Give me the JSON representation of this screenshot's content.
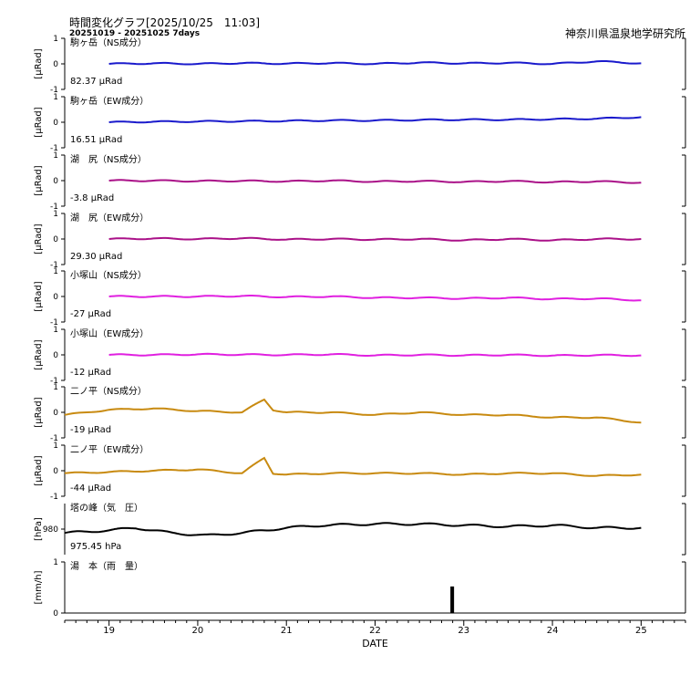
{
  "header": {
    "title": "時間変化グラフ[2025/10/25　11:03]",
    "range": "20251019 - 20251025 7days",
    "institute": "神奈川県温泉地学研究所"
  },
  "colors": {
    "blue": "#1a1acc",
    "purple": "#aa1188",
    "magenta": "#e020e0",
    "gold": "#c88a10",
    "black": "#000000"
  },
  "chart_data": {
    "type": "line",
    "xlabel": "DATE",
    "x_ticks": [
      "19",
      "20",
      "21",
      "22",
      "23",
      "24",
      "25"
    ],
    "xlim": [
      18.5,
      25.5
    ],
    "panels": [
      {
        "station": "駒ヶ岳（NS成分）",
        "ylabel": "[μRad]",
        "yticks": [
          "1",
          "0",
          "-1"
        ],
        "ylim": [
          -1,
          1
        ],
        "baseline": "82.37 μRad",
        "color": "blue",
        "series": [
          [
            19,
            0
          ],
          [
            19.5,
            0.02
          ],
          [
            20,
            0
          ],
          [
            20.5,
            0.03
          ],
          [
            21,
            0.01
          ],
          [
            21.5,
            0.03
          ],
          [
            22,
            0
          ],
          [
            22.5,
            0.05
          ],
          [
            23,
            0.02
          ],
          [
            23.5,
            0.04
          ],
          [
            24,
            0
          ],
          [
            24.5,
            0.1
          ],
          [
            25,
            0.02
          ]
        ]
      },
      {
        "station": "駒ヶ岳（EW成分）",
        "ylabel": "[μRad]",
        "yticks": [
          "1",
          "0",
          "-1"
        ],
        "ylim": [
          -1,
          1
        ],
        "baseline": "16.51 μRad",
        "color": "blue",
        "series": [
          [
            19,
            0
          ],
          [
            19.5,
            0.02
          ],
          [
            20,
            0.03
          ],
          [
            20.5,
            0.04
          ],
          [
            21,
            0.05
          ],
          [
            21.5,
            0.07
          ],
          [
            22,
            0.07
          ],
          [
            22.5,
            0.09
          ],
          [
            23,
            0.1
          ],
          [
            23.5,
            0.1
          ],
          [
            24,
            0.12
          ],
          [
            24.5,
            0.14
          ],
          [
            25,
            0.2
          ]
        ]
      },
      {
        "station": "湖　尻（NS成分）",
        "ylabel": "[μRad]",
        "yticks": [
          "1",
          "0",
          "-1"
        ],
        "ylim": [
          -1,
          1
        ],
        "baseline": "-3.8 μRad",
        "color": "purple",
        "series": [
          [
            19,
            0
          ],
          [
            19.5,
            0
          ],
          [
            20,
            -0.02
          ],
          [
            20.5,
            -0.01
          ],
          [
            21,
            -0.03
          ],
          [
            21.5,
            0
          ],
          [
            22,
            -0.04
          ],
          [
            22.5,
            -0.02
          ],
          [
            23,
            -0.05
          ],
          [
            23.5,
            -0.02
          ],
          [
            24,
            -0.06
          ],
          [
            24.5,
            -0.03
          ],
          [
            25,
            -0.08
          ]
        ]
      },
      {
        "station": "湖　尻（EW成分）",
        "ylabel": "[μRad]",
        "yticks": [
          "1",
          "0",
          "-1"
        ],
        "ylim": [
          -1,
          1
        ],
        "baseline": "29.30 μRad",
        "color": "purple",
        "series": [
          [
            19,
            0
          ],
          [
            19.5,
            0.02
          ],
          [
            20,
            0
          ],
          [
            20.5,
            0.03
          ],
          [
            21,
            -0.02
          ],
          [
            21.5,
            0
          ],
          [
            22,
            -0.02
          ],
          [
            22.5,
            0
          ],
          [
            23,
            -0.05
          ],
          [
            23.5,
            0
          ],
          [
            24,
            -0.05
          ],
          [
            24.5,
            0
          ],
          [
            25,
            0
          ]
        ]
      },
      {
        "station": "小塚山（NS成分）",
        "ylabel": "[μRad]",
        "yticks": [
          "1",
          "0",
          "-1"
        ],
        "ylim": [
          -1,
          1
        ],
        "baseline": "-27 μRad",
        "color": "magenta",
        "series": [
          [
            19,
            0
          ],
          [
            19.5,
            0
          ],
          [
            20,
            0
          ],
          [
            20.5,
            0.02
          ],
          [
            21,
            -0.02
          ],
          [
            21.5,
            0
          ],
          [
            22,
            -0.05
          ],
          [
            22.5,
            -0.05
          ],
          [
            23,
            -0.08
          ],
          [
            23.5,
            -0.05
          ],
          [
            24,
            -0.1
          ],
          [
            24.5,
            -0.08
          ],
          [
            25,
            -0.15
          ]
        ]
      },
      {
        "station": "小塚山（EW成分）",
        "ylabel": "[μRad]",
        "yticks": [
          "1",
          "0",
          "-1"
        ],
        "ylim": [
          -1,
          1
        ],
        "baseline": "-12 μRad",
        "color": "magenta",
        "series": [
          [
            19,
            0
          ],
          [
            19.5,
            0
          ],
          [
            20,
            0.02
          ],
          [
            20.5,
            0.01
          ],
          [
            21,
            0
          ],
          [
            21.5,
            0.02
          ],
          [
            22,
            -0.02
          ],
          [
            22.5,
            0
          ],
          [
            23,
            -0.02
          ],
          [
            23.5,
            0
          ],
          [
            24,
            -0.03
          ],
          [
            24.5,
            -0.01
          ],
          [
            25,
            -0.02
          ]
        ]
      },
      {
        "station": "二ノ平（NS成分）",
        "ylabel": "[μRad]",
        "yticks": [
          "1",
          "0",
          "-1"
        ],
        "ylim": [
          -1,
          1
        ],
        "baseline": "-19 μRad",
        "color": "gold",
        "series": [
          [
            18.5,
            -0.1
          ],
          [
            19,
            0.1
          ],
          [
            19.5,
            0.15
          ],
          [
            20,
            0.05
          ],
          [
            20.5,
            0
          ],
          [
            20.75,
            0.5
          ],
          [
            20.85,
            0.1
          ],
          [
            21,
            0
          ],
          [
            21.5,
            0
          ],
          [
            22,
            -0.1
          ],
          [
            22.5,
            0
          ],
          [
            23,
            -0.1
          ],
          [
            23.5,
            -0.1
          ],
          [
            24,
            -0.2
          ],
          [
            24.5,
            -0.2
          ],
          [
            25,
            -0.4
          ]
        ]
      },
      {
        "station": "二ノ平（EW成分）",
        "ylabel": "[μRad]",
        "yticks": [
          "1",
          "0",
          "-1"
        ],
        "ylim": [
          -1,
          1
        ],
        "baseline": "-44 μRad",
        "color": "gold",
        "series": [
          [
            18.5,
            -0.1
          ],
          [
            19,
            -0.05
          ],
          [
            19.5,
            0
          ],
          [
            20,
            0.05
          ],
          [
            20.5,
            -0.1
          ],
          [
            20.75,
            0.5
          ],
          [
            20.85,
            -0.1
          ],
          [
            21,
            -0.15
          ],
          [
            21.5,
            -0.1
          ],
          [
            22,
            -0.1
          ],
          [
            22.5,
            -0.1
          ],
          [
            23,
            -0.15
          ],
          [
            23.5,
            -0.1
          ],
          [
            24,
            -0.1
          ],
          [
            24.5,
            -0.2
          ],
          [
            25,
            -0.15
          ]
        ]
      },
      {
        "station": "塔の峰（気　圧）",
        "ylabel": "[hPa]",
        "yticks": [
          "980"
        ],
        "ylim": [
          970,
          990
        ],
        "baseline": "975.45 hPa",
        "color": "black",
        "series": [
          [
            18.5,
            978.5
          ],
          [
            19,
            979.5
          ],
          [
            19.3,
            980.5
          ],
          [
            19.7,
            978.5
          ],
          [
            20.1,
            977.5
          ],
          [
            20.5,
            978.5
          ],
          [
            21,
            980.5
          ],
          [
            21.4,
            981.5
          ],
          [
            22,
            982
          ],
          [
            22.5,
            982
          ],
          [
            23,
            981.5
          ],
          [
            23.5,
            981
          ],
          [
            24,
            981.5
          ],
          [
            24.5,
            980.5
          ],
          [
            25,
            980.5
          ]
        ]
      },
      {
        "station": "湯　本（雨　量）",
        "ylabel": "[mm/h]",
        "yticks": [
          "1",
          "0"
        ],
        "ylim": [
          0,
          1
        ],
        "baseline": "",
        "color": "black",
        "bars": [
          [
            22.87,
            0.52
          ]
        ]
      }
    ]
  }
}
